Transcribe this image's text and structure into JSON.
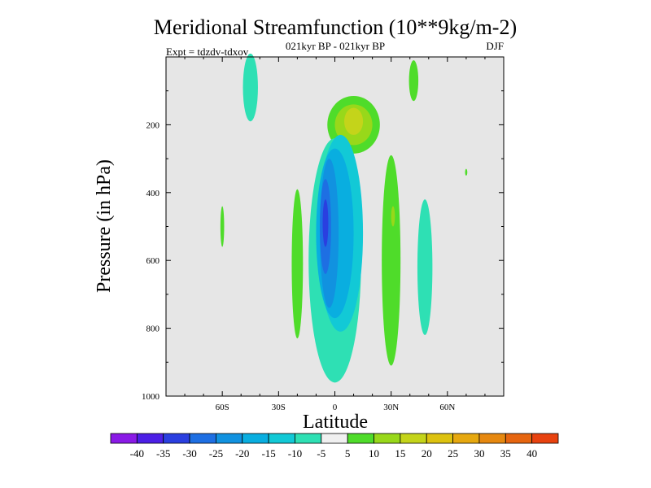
{
  "chart_data": {
    "type": "contour",
    "title": "Meridional Streamfunction (10**9kg/m-2)",
    "subtitle": "021kyr BP - 021kyr BP",
    "expt_label": "Expt = tdzdv-tdxov",
    "season_label": "DJF",
    "xlabel": "Latitude",
    "ylabel": "Pressure (in hPa)",
    "xlim": [
      -90,
      90
    ],
    "ylim": [
      1000,
      0
    ],
    "xticks": [
      -60,
      -30,
      0,
      30,
      60
    ],
    "xtick_labels": [
      "60S",
      "30S",
      "0",
      "30N",
      "60N"
    ],
    "yticks": [
      200,
      400,
      600,
      800,
      1000
    ],
    "ytick_labels": [
      "200",
      "400",
      "600",
      "800",
      "1000"
    ],
    "background_color": "#e6e6e6",
    "colorbar": {
      "colors": [
        "#8a1ae6",
        "#4c1fe6",
        "#2a3fe0",
        "#1e6fe3",
        "#1192e0",
        "#09aee0",
        "#12c9d6",
        "#2ee0b4",
        "#f0f0f0",
        "#4fdc2a",
        "#98d81a",
        "#c4d41a",
        "#ddc20f",
        "#e6a80f",
        "#e6880f",
        "#e6650f",
        "#e8420f"
      ],
      "labels": [
        "-40",
        "-35",
        "-30",
        "-25",
        "-20",
        "-15",
        "-10",
        "-5",
        "5",
        "10",
        "15",
        "20",
        "25",
        "30",
        "35",
        "40"
      ]
    },
    "regions": [
      {
        "lat": -45,
        "p": 90,
        "rlat": 4,
        "rp": 100,
        "level": "-5",
        "color": "#2ee0b4"
      },
      {
        "lat": -60,
        "p": 500,
        "rlat": 1,
        "rp": 60,
        "level": "5",
        "color": "#4fdc2a"
      },
      {
        "lat": 42,
        "p": 70,
        "rlat": 2.5,
        "rp": 60,
        "level": "5",
        "color": "#4fdc2a"
      },
      {
        "lat": 70,
        "p": 340,
        "rlat": 0.6,
        "rp": 10,
        "level": "5",
        "color": "#4fdc2a"
      },
      {
        "lat": 10,
        "p": 200,
        "rlat": 14,
        "rp": 85,
        "level": "5",
        "color": "#4fdc2a"
      },
      {
        "lat": 10,
        "p": 200,
        "rlat": 10,
        "rp": 60,
        "level": "10",
        "color": "#98d81a"
      },
      {
        "lat": 10,
        "p": 190,
        "rlat": 5,
        "rp": 40,
        "level": "15",
        "color": "#c4d41a"
      },
      {
        "lat": -20,
        "p": 610,
        "rlat": 3,
        "rp": 220,
        "level": "5",
        "color": "#4fdc2a"
      },
      {
        "lat": 30,
        "p": 600,
        "rlat": 5,
        "rp": 310,
        "level": "5",
        "color": "#4fdc2a"
      },
      {
        "lat": 31,
        "p": 470,
        "rlat": 1,
        "rp": 30,
        "level": "10",
        "color": "#98d81a"
      },
      {
        "lat": 48,
        "p": 620,
        "rlat": 4,
        "rp": 200,
        "level": "-5",
        "color": "#2ee0b4"
      },
      {
        "lat": 0,
        "p": 600,
        "rlat": 14,
        "rp": 360,
        "level": "-5",
        "color": "#2ee0b4"
      },
      {
        "lat": 3,
        "p": 520,
        "rlat": 12,
        "rp": 290,
        "level": "-10",
        "color": "#12c9d6"
      },
      {
        "lat": 0,
        "p": 520,
        "rlat": 10,
        "rp": 250,
        "level": "-15",
        "color": "#09aee0"
      },
      {
        "lat": -3,
        "p": 520,
        "rlat": 5,
        "rp": 220,
        "level": "-20",
        "color": "#1192e0"
      },
      {
        "lat": -5,
        "p": 500,
        "rlat": 3,
        "rp": 140,
        "level": "-25",
        "color": "#1e6fe3"
      },
      {
        "lat": -5,
        "p": 490,
        "rlat": 1.5,
        "rp": 70,
        "level": "-30",
        "color": "#2a3fe0"
      }
    ]
  }
}
